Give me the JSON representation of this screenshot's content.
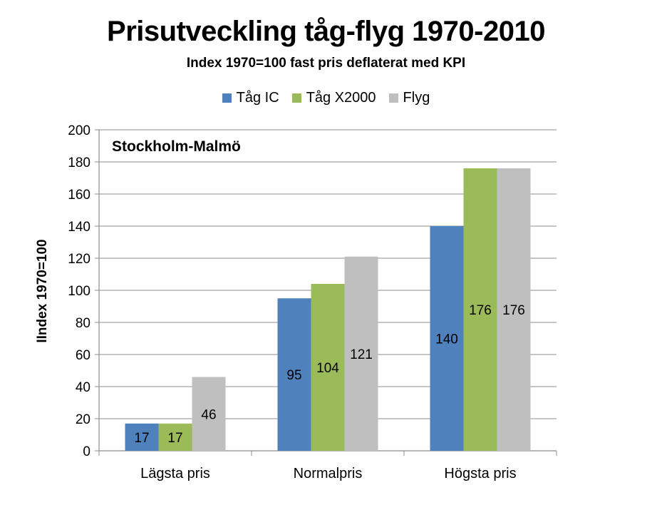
{
  "chart_data": {
    "type": "bar",
    "title": "Prisutveckling tåg-flyg 1970-2010",
    "subtitle": "Index 1970=100 fast pris deflaterat med KPI",
    "ylabel": "IIndex 1970=100",
    "xlabel": "",
    "annotation": "Stockholm-Malmö",
    "categories": [
      "Lägsta pris",
      "Normalpris",
      "Högsta pris"
    ],
    "series": [
      {
        "name": "Tåg IC",
        "values": [
          17,
          95,
          140
        ],
        "labels": [
          "17",
          "95",
          "140"
        ],
        "color": "#4F81BD"
      },
      {
        "name": "Tåg X2000",
        "values": [
          17,
          104,
          176
        ],
        "labels": [
          "17",
          "104",
          "176"
        ],
        "color": "#9BBB59"
      },
      {
        "name": "Flyg",
        "values": [
          46,
          121,
          176
        ],
        "labels": [
          "46",
          "121",
          "176"
        ],
        "color": "#BFBFBF"
      }
    ],
    "ylim": [
      0,
      200
    ],
    "yticks": [
      "0",
      "20",
      "40",
      "60",
      "80",
      "100",
      "120",
      "140",
      "160",
      "180",
      "200"
    ],
    "grid": true,
    "legend_position": "top"
  }
}
